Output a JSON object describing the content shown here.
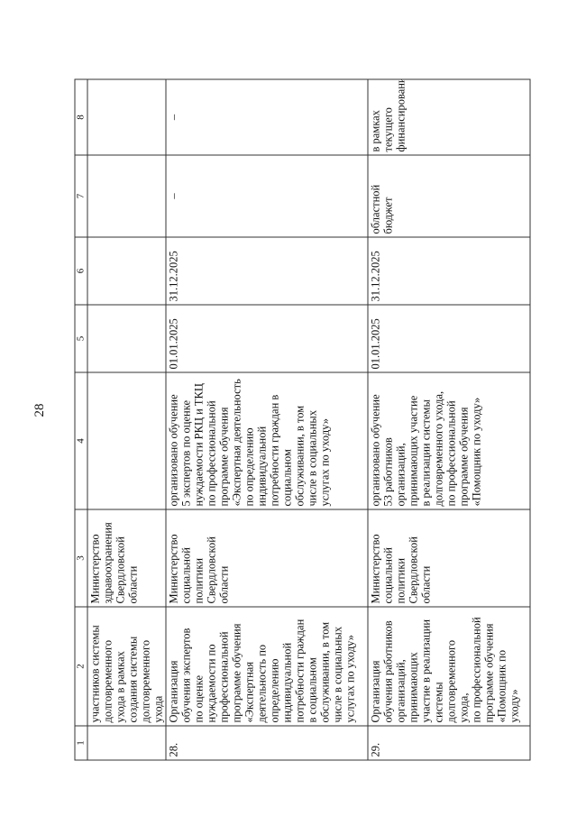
{
  "page_number": "28",
  "table": {
    "headers": [
      "1",
      "2",
      "3",
      "4",
      "5",
      "6",
      "7",
      "8"
    ],
    "rows": [
      {
        "num": "",
        "activity": "участников системы\nдолговременного\nухода в рамках\nсоздания системы\nдолговременного\nухода",
        "executor": "Министерство\nздравоохранения\nСвердловской\nобласти",
        "result": "",
        "start": "",
        "end": "",
        "source": "",
        "amount": ""
      },
      {
        "num": "28.",
        "activity": "Организация\nобучения экспертов\nпо оценке\nнуждаемости по\nпрофессиональной\nпрограмме обучения\n«Экспертная\nдеятельность по\nопределению\nиндивидуальной\nпотребности граждан\nв социальном\nобслуживании, в том\nчисле в социальных\nуслугах по уходу»",
        "executor": "Министерство\nсоциальной\nполитики\nСвердловской\nобласти",
        "result": "организовано обучение\n5 экспертов по оценке\nнуждаемости РКЦ и ТКЦ\nпо профессиональной\nпрограмме обучения\n«Экспертная деятельность\nпо определению\nиндивидуальной\nпотребности граждан в\nсоциальном\nобслуживании, в том\nчисле в социальных\nуслугах по уходу»",
        "start": "01.01.2025",
        "end": "31.12.2025",
        "source": "–",
        "amount": "–"
      },
      {
        "num": "29.",
        "activity": "Организация\nобучения работников\nорганизаций,\nпринимающих\nучастие в реализации\nсистемы\nдолговременного\nухода,\nпо профессиональной\nпрограмме обучения\n«Помощник по\nуходу»",
        "executor": "Министерство\nсоциальной\nполитики\nСвердловской\nобласти",
        "result": "организовано обучение\n53 работников\nорганизаций,\nпринимающих участие\nв реализации системы\nдолговременного ухода,\nпо профессиональной\nпрограмме обучения\n«Помощник по уходу»",
        "start": "01.01.2025",
        "end": "31.12.2025",
        "source": "областной\nбюджет",
        "amount": "в рамках\nтекущего\nфинансирования"
      }
    ]
  }
}
